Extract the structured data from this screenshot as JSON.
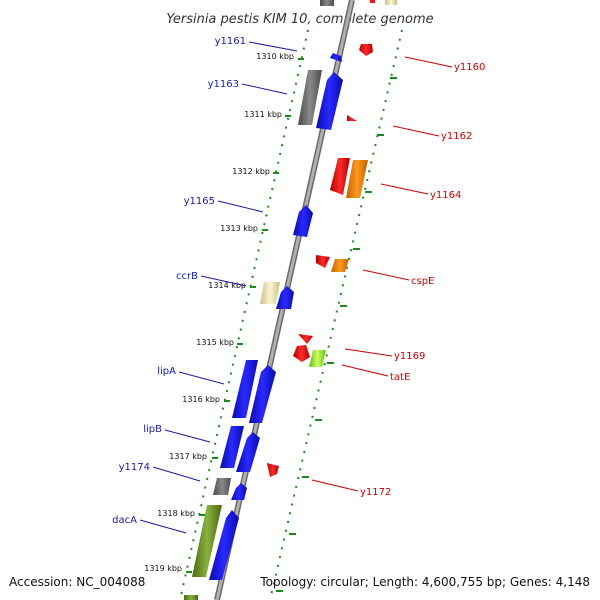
{
  "title": "Yersinia pestis KIM 10, complete genome",
  "footer": {
    "accession": "Accession: NC_004088",
    "topology": "Topology: circular; Length: 4,600,755 bp; Genes: 4,148"
  },
  "ticks": [
    "1310 kbp",
    "1311 kbp",
    "1312 kbp",
    "1313 kbp",
    "1314 kbp",
    "1315 kbp",
    "1316 kbp",
    "1317 kbp",
    "1318 kbp",
    "1319 kbp"
  ],
  "left_labels": [
    "y1161",
    "y1163",
    "y1165",
    "ccrB",
    "lipA",
    "lipB",
    "y1174",
    "dacA"
  ],
  "right_labels": [
    "y1160",
    "y1162",
    "y1164",
    "cspE",
    "y1169",
    "tatE",
    "y1172"
  ],
  "colors": {
    "blue": "#1010e8",
    "gray": "#707070",
    "red": "#ee1111",
    "orange": "#f08a10",
    "pale_yellow": "#f0e8a8",
    "olive": "#6b8e23",
    "lime": "#99ee33",
    "green_dots": "#1a8a1a",
    "backbone": "#909090",
    "label_blue": "#1a1aa8",
    "label_red": "#cc0000"
  }
}
